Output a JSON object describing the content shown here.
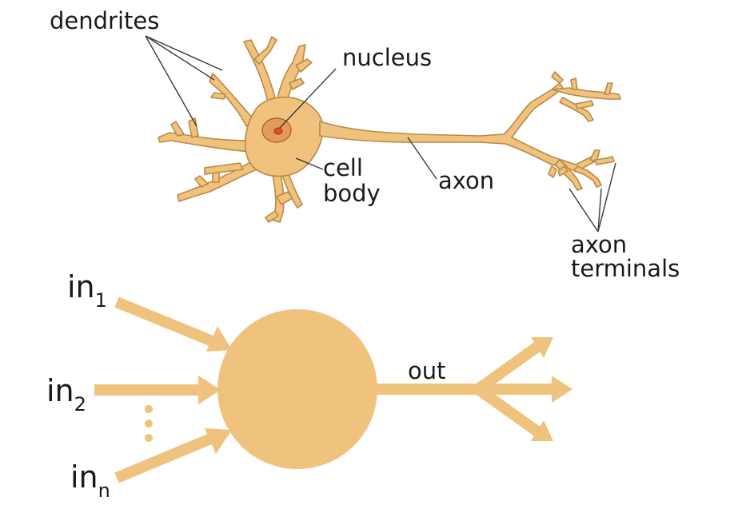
{
  "colors": {
    "neuron_fill": "#F0C27E",
    "neuron_outline": "#B88A45",
    "nucleus_fill": "#E49A5A",
    "nucleolus_fill": "#D9532A",
    "model_fill": "#EFC27E",
    "leader_line": "#3a3a3a",
    "text": "#1a1a1a"
  },
  "biological_neuron": {
    "labels": {
      "dendrites": "dendrites",
      "nucleus": "nucleus",
      "cell_body_line1": "cell",
      "cell_body_line2": "body",
      "axon": "axon",
      "axon_terminals_line1": "axon",
      "axon_terminals_line2": "terminals"
    }
  },
  "artificial_neuron": {
    "inputs": [
      {
        "base": "in",
        "sub": "1"
      },
      {
        "base": "in",
        "sub": "2"
      },
      {
        "base": "in",
        "sub": "n"
      }
    ],
    "ellipsis": "⋮",
    "output_label": "out"
  }
}
